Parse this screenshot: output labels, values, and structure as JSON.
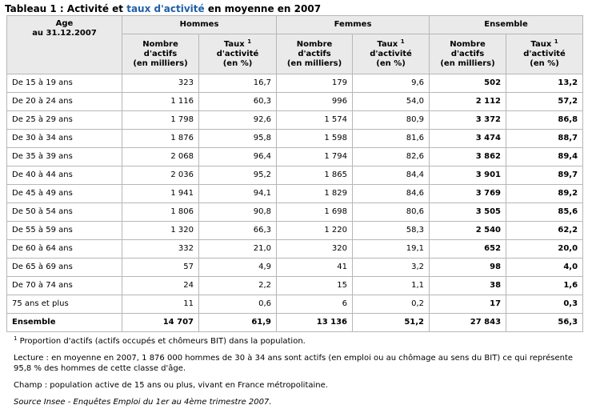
{
  "title": {
    "prefix": "Tableau 1 : Activité et ",
    "link": "taux d'activité",
    "suffix": " en moyenne en 2007"
  },
  "table": {
    "age_header_line1": "Age",
    "age_header_line2": "au 31.12.2007",
    "groups": [
      "Hommes",
      "Femmes",
      "Ensemble"
    ],
    "subheaders": [
      {
        "line1": "Nombre",
        "line2": "d'actifs",
        "line3": "(en milliers)",
        "sup": ""
      },
      {
        "line1": "Taux",
        "line2": "d'activité",
        "line3": "(en %)",
        "sup": "1"
      },
      {
        "line1": "Nombre",
        "line2": "d'actifs",
        "line3": "(en milliers)",
        "sup": ""
      },
      {
        "line1": "Taux",
        "line2": "d'activité",
        "line3": "(en %)",
        "sup": "1"
      },
      {
        "line1": "Nombre",
        "line2": "d'actifs",
        "line3": "(en milliers)",
        "sup": ""
      },
      {
        "line1": "Taux",
        "line2": "d'activité",
        "line3": "(en %)",
        "sup": "1"
      }
    ],
    "rows": [
      {
        "label": "De 15 à 19 ans",
        "values": [
          "323",
          "16,7",
          "179",
          "9,6",
          "502",
          "13,2"
        ]
      },
      {
        "label": "De 20 à 24 ans",
        "values": [
          "1 116",
          "60,3",
          "996",
          "54,0",
          "2 112",
          "57,2"
        ]
      },
      {
        "label": "De 25 à 29 ans",
        "values": [
          "1 798",
          "92,6",
          "1 574",
          "80,9",
          "3 372",
          "86,8"
        ]
      },
      {
        "label": "De 30 à 34 ans",
        "values": [
          "1 876",
          "95,8",
          "1 598",
          "81,6",
          "3 474",
          "88,7"
        ]
      },
      {
        "label": "De 35 à 39 ans",
        "values": [
          "2 068",
          "96,4",
          "1 794",
          "82,6",
          "3 862",
          "89,4"
        ]
      },
      {
        "label": "De 40 à 44 ans",
        "values": [
          "2 036",
          "95,2",
          "1 865",
          "84,4",
          "3 901",
          "89,7"
        ]
      },
      {
        "label": "De 45 à 49 ans",
        "values": [
          "1 941",
          "94,1",
          "1 829",
          "84,6",
          "3 769",
          "89,2"
        ]
      },
      {
        "label": "De 50 à 54 ans",
        "values": [
          "1 806",
          "90,8",
          "1 698",
          "80,6",
          "3 505",
          "85,6"
        ]
      },
      {
        "label": "De 55 à 59 ans",
        "values": [
          "1 320",
          "66,3",
          "1 220",
          "58,3",
          "2 540",
          "62,2"
        ]
      },
      {
        "label": "De 60 à 64 ans",
        "values": [
          "332",
          "21,0",
          "320",
          "19,1",
          "652",
          "20,0"
        ]
      },
      {
        "label": "De 65 à 69 ans",
        "values": [
          "57",
          "4,9",
          "41",
          "3,2",
          "98",
          "4,0"
        ]
      },
      {
        "label": "De 70 à 74 ans",
        "values": [
          "24",
          "2,2",
          "15",
          "1,1",
          "38",
          "1,6"
        ]
      },
      {
        "label": "75 ans et plus",
        "values": [
          "11",
          "0,6",
          "6",
          "0,2",
          "17",
          "0,3"
        ]
      }
    ],
    "total": {
      "label": "Ensemble",
      "values": [
        "14 707",
        "61,9",
        "13 136",
        "51,2",
        "27 843",
        "56,3"
      ]
    }
  },
  "notes": {
    "footnote_marker": "1",
    "footnote_text": " Proportion d'actifs (actifs occupés et chômeurs BIT) dans la population.",
    "lecture": "Lecture : en moyenne en 2007, 1 876 000 hommes de 30 à 34 ans sont actifs (en emploi ou au chômage au sens du BIT) ce qui représente 95,8 % des hommes de cette classe d'âge.",
    "champ": "Champ : population active de 15 ans ou plus, vivant en France métropolitaine.",
    "source": "Source Insee - Enquêtes Emploi du 1er au 4ème trimestre 2007."
  }
}
